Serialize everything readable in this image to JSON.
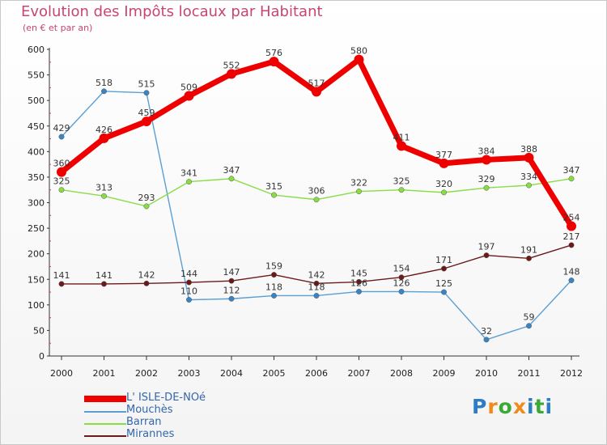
{
  "title": "Evolution des Impôts locaux par Habitant",
  "subtitle": "(en € et par an)",
  "logo": {
    "letters": [
      "P",
      "r",
      "o",
      "x",
      "i",
      "t",
      "i"
    ],
    "colors": [
      "#2e7dc4",
      "#f08a1c",
      "#3aa935",
      "#f08a1c",
      "#2e7dc4",
      "#3aa935",
      "#2e7dc4"
    ]
  },
  "chart_data": {
    "type": "line",
    "title": "Evolution des Impôts locaux par Habitant",
    "subtitle": "(en € et par an)",
    "xlabel": "",
    "ylabel": "",
    "ylim": [
      0,
      600
    ],
    "ytick_step": 50,
    "grid": false,
    "legend_position": "bottom-left",
    "categories": [
      "2000",
      "2001",
      "2002",
      "2003",
      "2004",
      "2005",
      "2006",
      "2007",
      "2008",
      "2009",
      "2010",
      "2011",
      "2012"
    ],
    "series": [
      {
        "name": "L' ISLE-DE-NOé",
        "color": "#ee0000",
        "marker": "#ee0000",
        "emphasis": true,
        "values": [
          360,
          426,
          459,
          509,
          552,
          576,
          517,
          580,
          411,
          377,
          384,
          388,
          254
        ],
        "labels": [
          "360",
          "426",
          "459",
          "509",
          "552",
          "576",
          "517",
          "580",
          "411",
          "377",
          "384",
          "388",
          "254"
        ]
      },
      {
        "name": "Mouchès",
        "color": "#5a9fd4",
        "marker": "#3b84c4",
        "emphasis": false,
        "values": [
          429,
          518,
          515,
          110,
          112,
          118,
          118,
          126,
          126,
          125,
          32,
          59,
          148
        ],
        "labels": [
          "429",
          "518",
          "515",
          "110",
          "112",
          "118",
          "118",
          "126",
          "126",
          "125",
          "32",
          "59",
          "148"
        ]
      },
      {
        "name": "Barran",
        "color": "#88dd44",
        "marker": "#88dd44",
        "emphasis": false,
        "values": [
          325,
          313,
          293,
          341,
          347,
          315,
          306,
          322,
          325,
          320,
          329,
          334,
          347
        ],
        "labels": [
          "325",
          "313",
          "293",
          "341",
          "347",
          "315",
          "306",
          "322",
          "325",
          "320",
          "329",
          "334",
          "347"
        ]
      },
      {
        "name": "Mirannes",
        "color": "#6b1a1a",
        "marker": "#6b1a1a",
        "emphasis": false,
        "values": [
          141,
          141,
          142,
          144,
          147,
          159,
          142,
          145,
          154,
          171,
          197,
          191,
          217
        ],
        "labels": [
          "141",
          "141",
          "142",
          "144",
          "147",
          "159",
          "142",
          "145",
          "154",
          "171",
          "197",
          "191",
          "217"
        ]
      }
    ]
  }
}
